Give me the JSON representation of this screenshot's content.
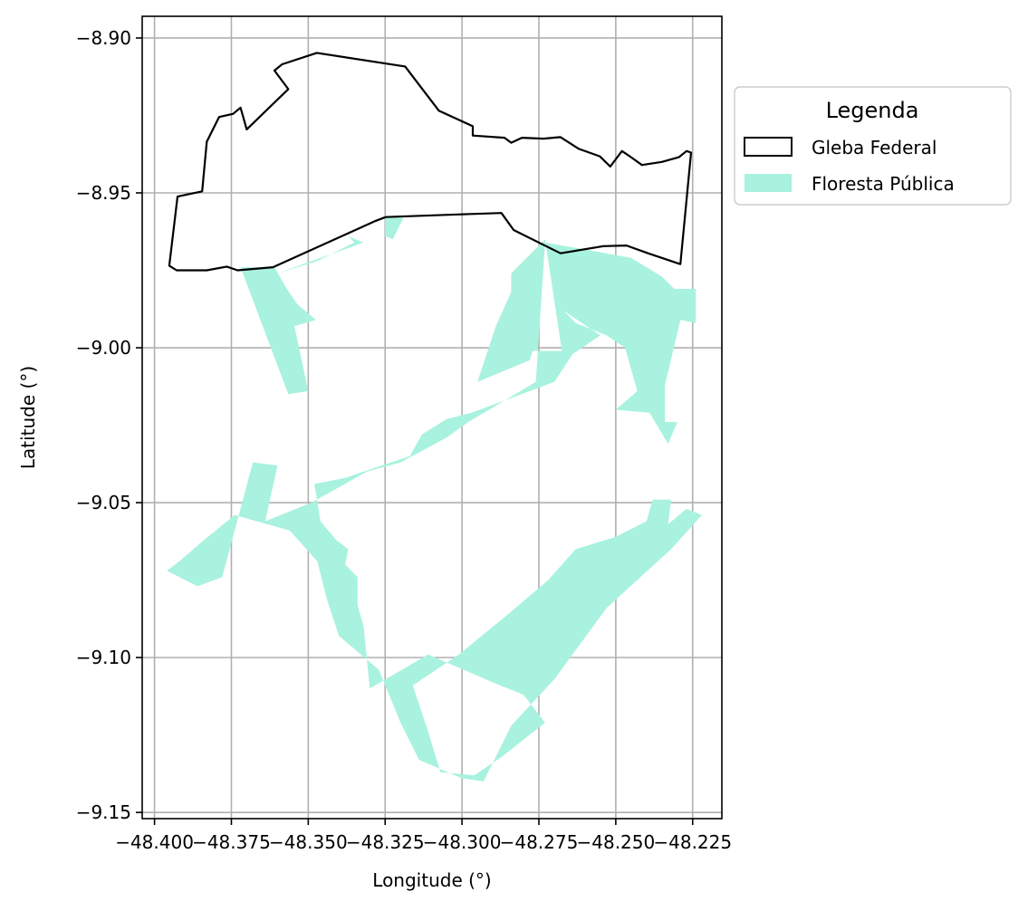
{
  "chart_data": {
    "type": "map",
    "xlabel": "Longitude (°)",
    "ylabel": "Latitude (°)",
    "xlim": [
      -48.404,
      -48.2155
    ],
    "ylim": [
      -9.152,
      -8.893
    ],
    "xticks": [
      -48.4,
      -48.375,
      -48.35,
      -48.325,
      -48.3,
      -48.275,
      -48.25,
      -48.225
    ],
    "xtick_labels": [
      "−48.400",
      "−48.375",
      "−48.350",
      "−48.325",
      "−48.300",
      "−48.275",
      "−48.250",
      "−48.225"
    ],
    "yticks": [
      -8.9,
      -8.95,
      -9.0,
      -9.05,
      -9.1,
      -9.15
    ],
    "ytick_labels": [
      "−8.90",
      "−8.95",
      "−9.00",
      "−9.05",
      "−9.10",
      "−9.15"
    ],
    "grid": true,
    "legend": {
      "title": "Legenda",
      "placement": "outside-upper-right",
      "entries": [
        {
          "label": "Gleba Federal",
          "style": "outline",
          "edgecolor": "#000000",
          "facecolor": "none"
        },
        {
          "label": "Floresta Pública",
          "style": "fill",
          "facecolor": "#a8f2df"
        }
      ]
    },
    "series": [
      {
        "name": "Gleba Federal",
        "kind": "polygon-outline",
        "color": "#000000",
        "polygons": [
          [
            [
              -48.3952,
              -8.9735
            ],
            [
              -48.3925,
              -8.9512
            ],
            [
              -48.3845,
              -8.9495
            ],
            [
              -48.383,
              -8.9335
            ],
            [
              -48.3815,
              -8.9305
            ],
            [
              -48.379,
              -8.9255
            ],
            [
              -48.3745,
              -8.9245
            ],
            [
              -48.372,
              -8.9225
            ],
            [
              -48.37,
              -8.9295
            ],
            [
              -48.3565,
              -8.9165
            ],
            [
              -48.361,
              -8.9105
            ],
            [
              -48.3585,
              -8.9085
            ],
            [
              -48.3472,
              -8.9048
            ],
            [
              -48.3185,
              -8.9092
            ],
            [
              -48.3075,
              -8.9235
            ],
            [
              -48.2965,
              -8.9285
            ],
            [
              -48.2965,
              -8.9315
            ],
            [
              -48.2862,
              -8.9322
            ],
            [
              -48.284,
              -8.9338
            ],
            [
              -48.2805,
              -8.9322
            ],
            [
              -48.2735,
              -8.9325
            ],
            [
              -48.268,
              -8.932
            ],
            [
              -48.262,
              -8.9358
            ],
            [
              -48.2552,
              -8.9382
            ],
            [
              -48.2518,
              -8.9415
            ],
            [
              -48.248,
              -8.9365
            ],
            [
              -48.245,
              -8.9385
            ],
            [
              -48.2415,
              -8.941
            ],
            [
              -48.235,
              -8.94
            ],
            [
              -48.2295,
              -8.9385
            ],
            [
              -48.227,
              -8.9365
            ],
            [
              -48.2255,
              -8.937
            ],
            [
              -48.229,
              -8.973
            ],
            [
              -48.2395,
              -8.9695
            ],
            [
              -48.2465,
              -8.967
            ],
            [
              -48.254,
              -8.9672
            ],
            [
              -48.268,
              -8.9695
            ],
            [
              -48.2832,
              -8.962
            ],
            [
              -48.2872,
              -8.9565
            ],
            [
              -48.297,
              -8.9568
            ],
            [
              -48.3248,
              -8.9578
            ],
            [
              -48.328,
              -8.959
            ],
            [
              -48.3615,
              -8.974
            ],
            [
              -48.373,
              -8.975
            ],
            [
              -48.3765,
              -8.9738
            ],
            [
              -48.383,
              -8.975
            ],
            [
              -48.3928,
              -8.975
            ]
          ]
        ]
      },
      {
        "name": "Floresta Pública",
        "kind": "polygon-fill",
        "color": "#a8f2df",
        "polygons": [
          [
            [
              -48.36,
              -8.976
            ],
            [
              -48.332,
              -8.966
            ],
            [
              -48.337,
              -8.964
            ],
            [
              -48.335,
              -8.966
            ],
            [
              -48.347,
              -8.972
            ]
          ],
          [
            [
              -48.319,
              -8.958
            ],
            [
              -48.325,
              -8.958
            ],
            [
              -48.325,
              -8.964
            ],
            [
              -48.3225,
              -8.965
            ]
          ],
          [
            [
              -48.372,
              -8.974
            ],
            [
              -48.361,
              -8.974
            ],
            [
              -48.357,
              -8.981
            ],
            [
              -48.3535,
              -8.986
            ],
            [
              -48.3475,
              -8.991
            ],
            [
              -48.3545,
              -8.993
            ],
            [
              -48.35,
              -9.014
            ],
            [
              -48.3565,
              -9.015
            ]
          ],
          [
            [
              -48.273,
              -8.965
            ],
            [
              -48.284,
              -8.976
            ],
            [
              -48.284,
              -8.982
            ],
            [
              -48.289,
              -8.993
            ],
            [
              -48.295,
              -9.011
            ],
            [
              -48.278,
              -9.004
            ],
            [
              -48.277,
              -9.001
            ],
            [
              -48.2675,
              -9.001
            ]
          ],
          [
            [
              -48.273,
              -8.966
            ],
            [
              -48.245,
              -8.971
            ],
            [
              -48.235,
              -8.977
            ],
            [
              -48.231,
              -8.981
            ],
            [
              -48.224,
              -8.981
            ],
            [
              -48.224,
              -8.992
            ],
            [
              -48.229,
              -8.991
            ],
            [
              -48.234,
              -9.012
            ],
            [
              -48.234,
              -9.024
            ],
            [
              -48.23,
              -9.024
            ],
            [
              -48.233,
              -9.031
            ],
            [
              -48.239,
              -9.021
            ],
            [
              -48.25,
              -9.02
            ],
            [
              -48.243,
              -9.014
            ],
            [
              -48.247,
              -9.0
            ],
            [
              -48.253,
              -8.996
            ],
            [
              -48.263,
              -8.992
            ],
            [
              -48.267,
              -8.988
            ],
            [
              -48.255,
              -8.996
            ],
            [
              -48.264,
              -9.002
            ],
            [
              -48.27,
              -9.011
            ],
            [
              -48.297,
              -9.021
            ],
            [
              -48.305,
              -9.023
            ],
            [
              -48.313,
              -9.028
            ],
            [
              -48.317,
              -9.035
            ],
            [
              -48.329,
              -9.039
            ],
            [
              -48.338,
              -9.042
            ],
            [
              -48.348,
              -9.044
            ],
            [
              -48.346,
              -9.056
            ],
            [
              -48.341,
              -9.062
            ],
            [
              -48.337,
              -9.065
            ],
            [
              -48.338,
              -9.07
            ],
            [
              -48.334,
              -9.074
            ],
            [
              -48.334,
              -9.083
            ],
            [
              -48.332,
              -9.09
            ],
            [
              -48.33,
              -9.11
            ],
            [
              -48.311,
              -9.099
            ],
            [
              -48.29,
              -9.108
            ],
            [
              -48.28,
              -9.112
            ],
            [
              -48.273,
              -9.121
            ],
            [
              -48.287,
              -9.132
            ],
            [
              -48.296,
              -9.138
            ],
            [
              -48.307,
              -9.137
            ],
            [
              -48.311,
              -9.124
            ],
            [
              -48.316,
              -9.109
            ],
            [
              -48.301,
              -9.099
            ],
            [
              -48.285,
              -9.086
            ],
            [
              -48.272,
              -9.075
            ],
            [
              -48.263,
              -9.065
            ],
            [
              -48.25,
              -9.061
            ],
            [
              -48.24,
              -9.056
            ],
            [
              -48.238,
              -9.049
            ],
            [
              -48.232,
              -9.049
            ],
            [
              -48.233,
              -9.057
            ],
            [
              -48.227,
              -9.052
            ],
            [
              -48.222,
              -9.054
            ],
            [
              -48.232,
              -9.065
            ],
            [
              -48.253,
              -9.084
            ],
            [
              -48.27,
              -9.107
            ],
            [
              -48.284,
              -9.122
            ],
            [
              -48.293,
              -9.14
            ],
            [
              -48.3,
              -9.139
            ],
            [
              -48.314,
              -9.133
            ],
            [
              -48.32,
              -9.121
            ],
            [
              -48.327,
              -9.104
            ],
            [
              -48.34,
              -9.093
            ],
            [
              -48.344,
              -9.081
            ],
            [
              -48.347,
              -9.069
            ],
            [
              -48.356,
              -9.059
            ],
            [
              -48.374,
              -9.054
            ],
            [
              -48.385,
              -9.063
            ],
            [
              -48.392,
              -9.069
            ],
            [
              -48.396,
              -9.072
            ],
            [
              -48.386,
              -9.077
            ],
            [
              -48.378,
              -9.074
            ],
            [
              -48.368,
              -9.037
            ],
            [
              -48.36,
              -9.038
            ],
            [
              -48.364,
              -9.056
            ],
            [
              -48.349,
              -9.05
            ],
            [
              -48.331,
              -9.04
            ],
            [
              -48.32,
              -9.037
            ],
            [
              -48.305,
              -9.029
            ],
            [
              -48.298,
              -9.024
            ],
            [
              -48.276,
              -9.011
            ]
          ]
        ]
      }
    ]
  }
}
